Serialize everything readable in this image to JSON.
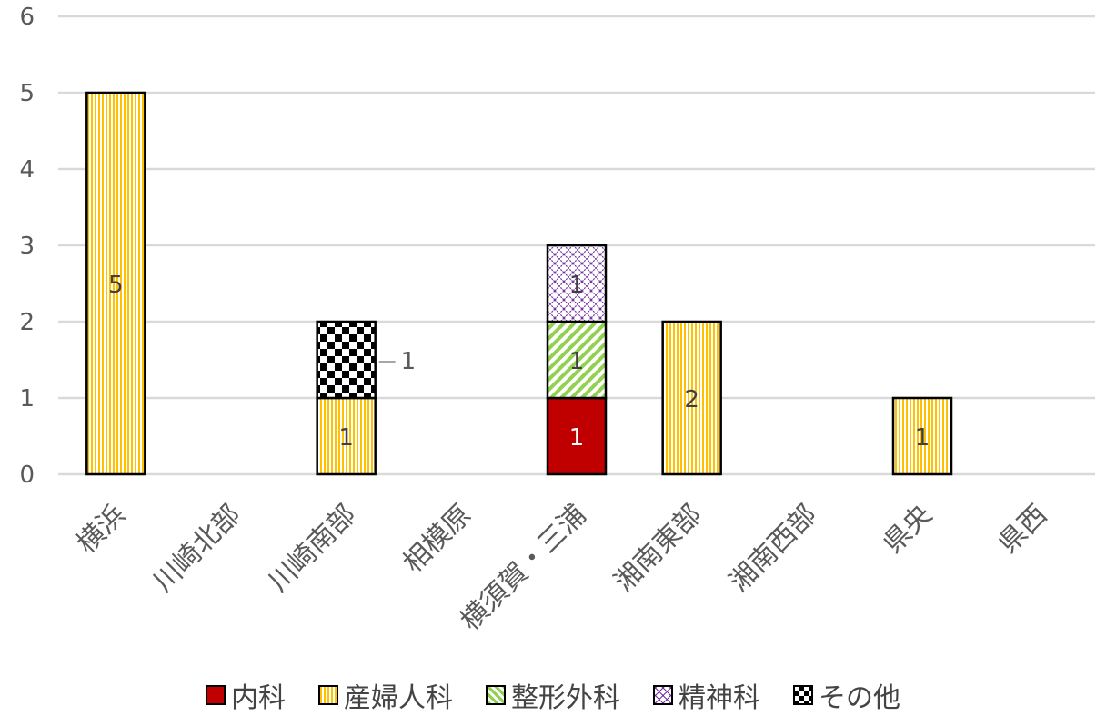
{
  "chart_data": {
    "type": "bar",
    "stacked": true,
    "categories": [
      "横浜",
      "川崎北部",
      "川崎南部",
      "相模原",
      "横須賀・三浦",
      "湘南東部",
      "湘南西部",
      "県央",
      "県西"
    ],
    "series": [
      {
        "name": "内科",
        "values": [
          0,
          0,
          0,
          0,
          1,
          0,
          0,
          0,
          0
        ],
        "color": "#C00000"
      },
      {
        "name": "産婦人科",
        "values": [
          5,
          0,
          1,
          0,
          0,
          2,
          0,
          1,
          0
        ],
        "color": "#FFC000"
      },
      {
        "name": "整形外科",
        "values": [
          0,
          0,
          0,
          0,
          1,
          0,
          0,
          0,
          0
        ],
        "color": "#92D050"
      },
      {
        "name": "精神科",
        "values": [
          0,
          0,
          0,
          0,
          1,
          0,
          0,
          0,
          0
        ],
        "color": "#7030A0"
      },
      {
        "name": "その他",
        "values": [
          0,
          0,
          1,
          0,
          0,
          0,
          0,
          0,
          0
        ],
        "color": "#000000"
      }
    ],
    "yticks": [
      "0",
      "1",
      "2",
      "3",
      "4",
      "5",
      "6"
    ],
    "ylim": [
      0,
      6
    ],
    "grid": true,
    "legend_position": "bottom"
  }
}
